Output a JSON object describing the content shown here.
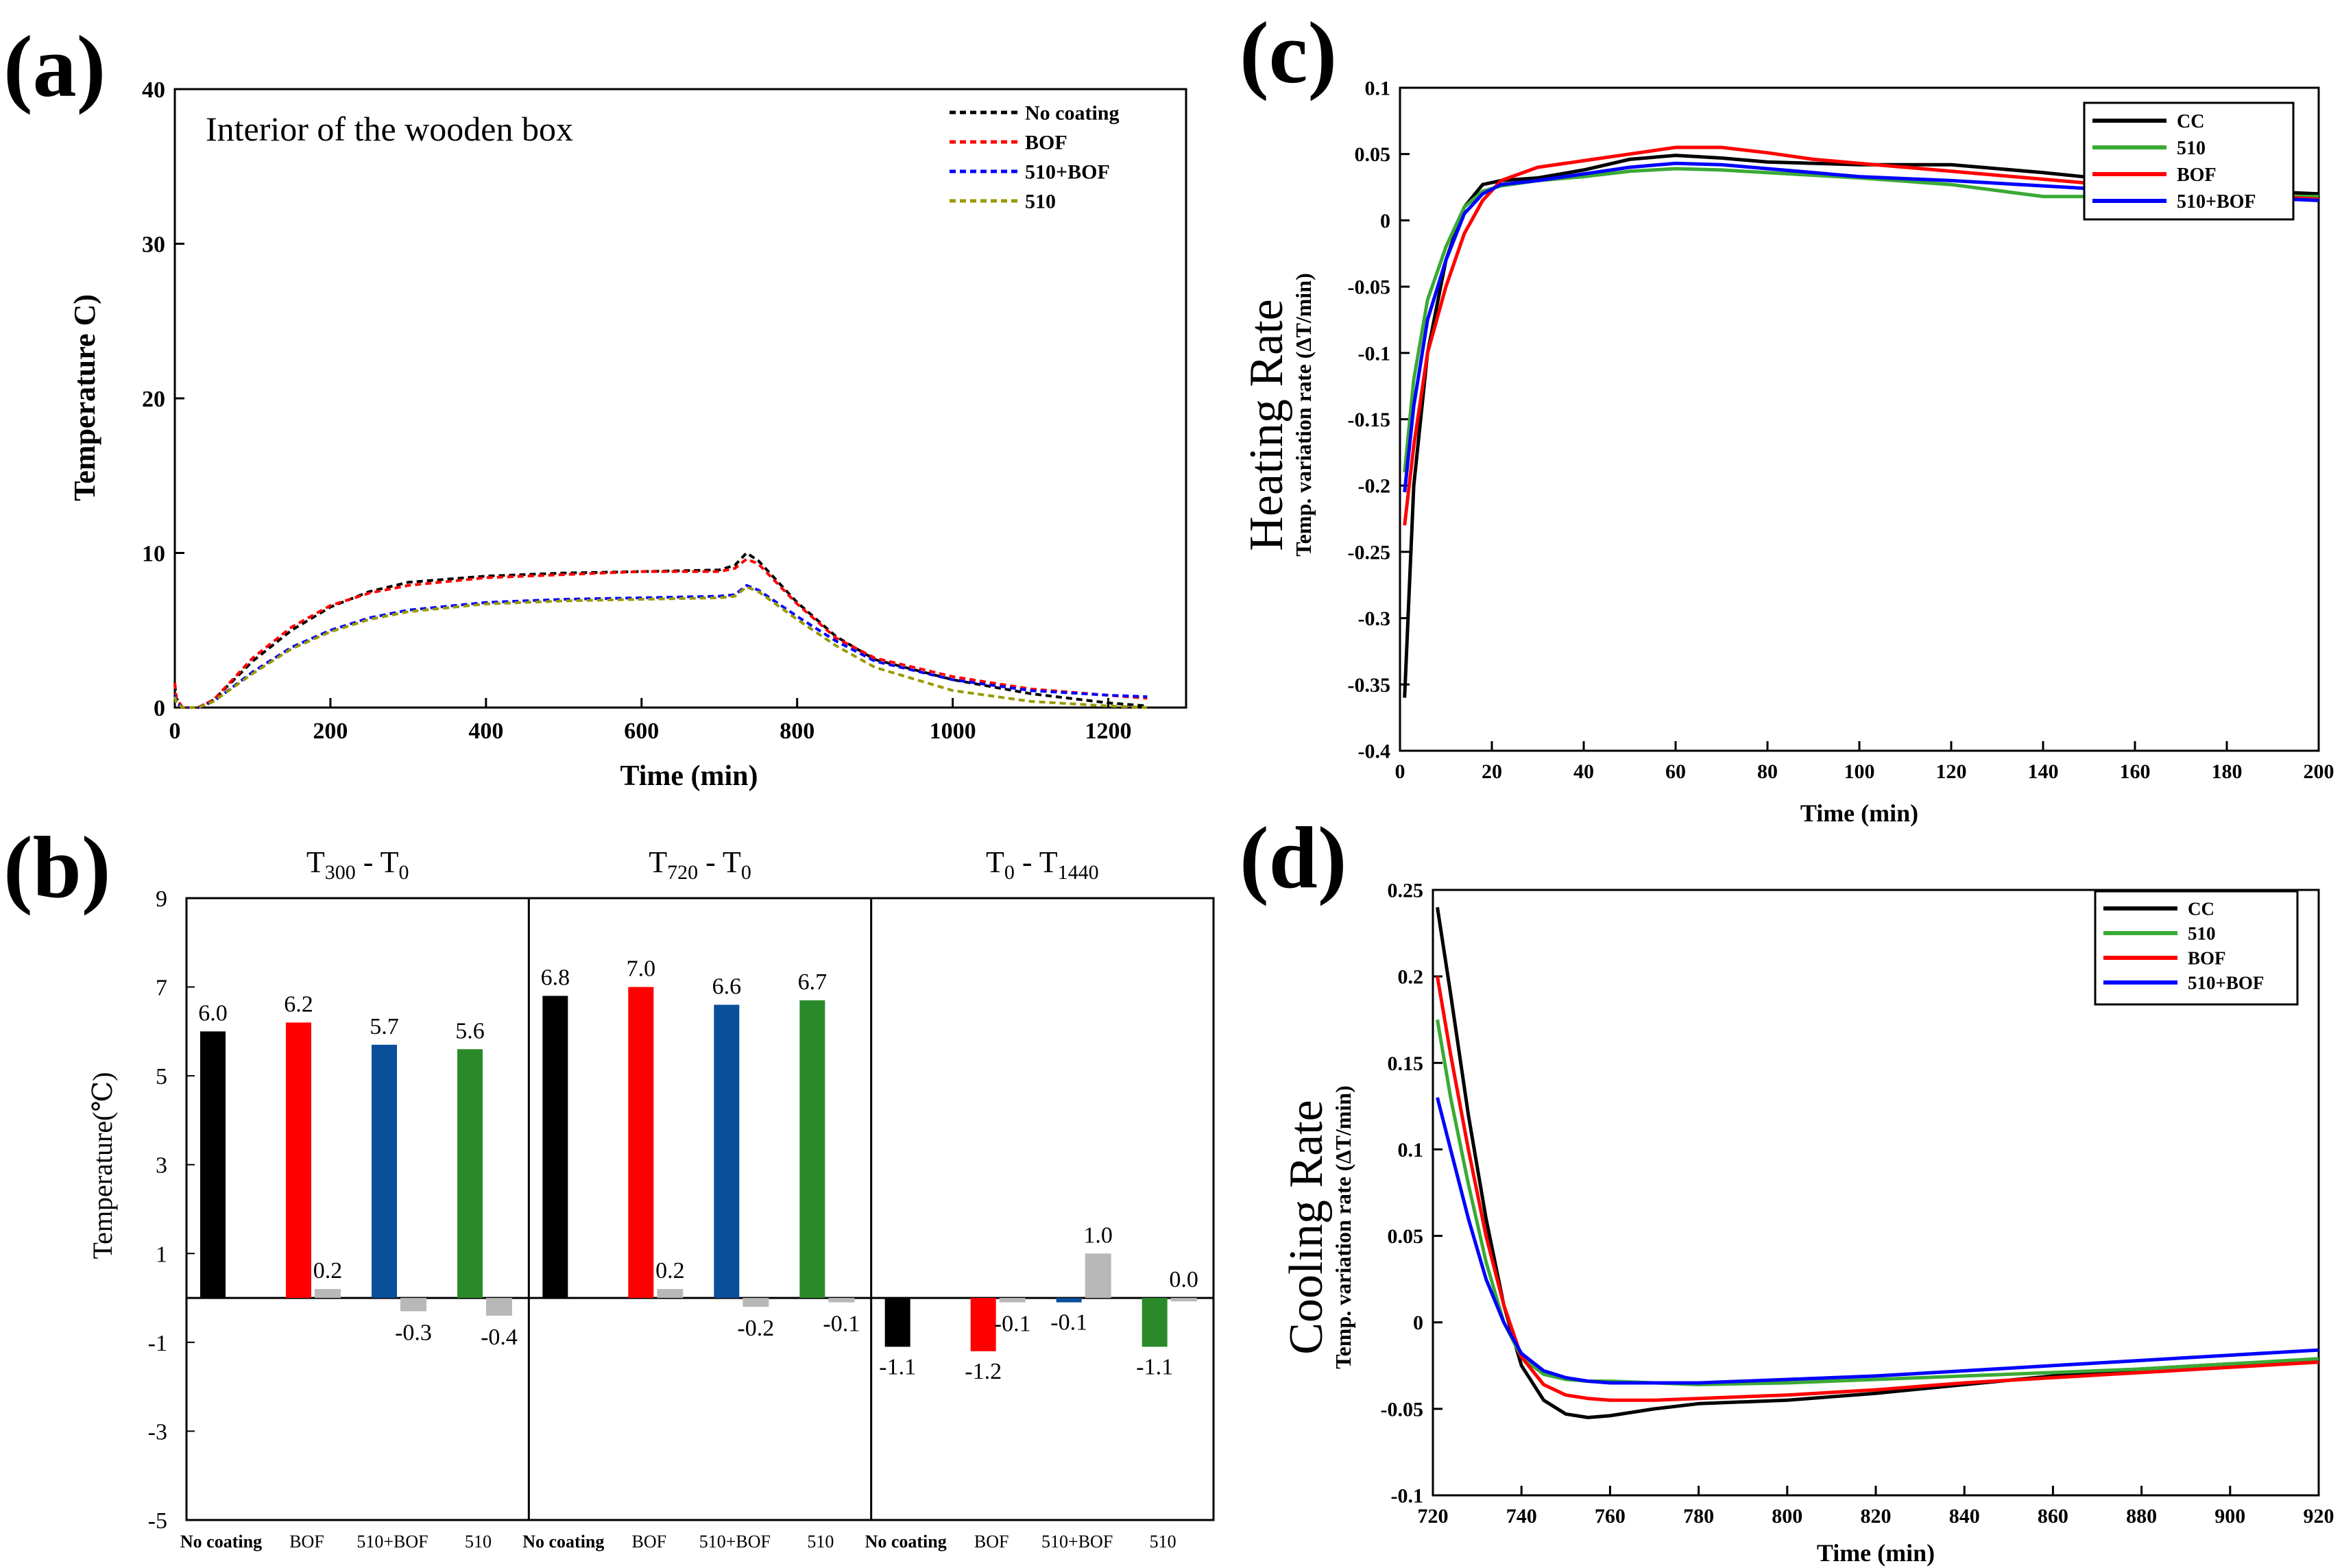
{
  "figure": {
    "panel_a_tag": "(a)",
    "panel_b_tag": "(b)",
    "panel_c_tag": "(c)",
    "panel_d_tag": "(d)"
  },
  "chart_data": [
    {
      "id": "a",
      "type": "line",
      "title": "Interior of the wooden box",
      "xlabel": "Time (min)",
      "ylabel": "Temperature   C)",
      "xlim": [
        0,
        1300
      ],
      "ylim": [
        0,
        40
      ],
      "xticks": [
        "0",
        "200",
        "400",
        "600",
        "800",
        "1000",
        "1200"
      ],
      "yticks": [
        "0",
        "10",
        "20",
        "30",
        "40"
      ],
      "legend_position": "top-right",
      "series": [
        {
          "name": "No coating",
          "color": "#000000",
          "dash": true,
          "x": [
            0,
            2,
            10,
            30,
            50,
            100,
            150,
            200,
            250,
            300,
            400,
            500,
            600,
            700,
            720,
            735,
            750,
            800,
            850,
            900,
            1000,
            1100,
            1200,
            1250
          ],
          "y": [
            1.5,
            0.6,
            0.0,
            0.0,
            0.5,
            3.0,
            5.0,
            6.5,
            7.5,
            8.1,
            8.5,
            8.7,
            8.8,
            8.9,
            9.2,
            10.0,
            9.5,
            6.8,
            4.6,
            3.1,
            1.8,
            0.9,
            0.3,
            0.1
          ]
        },
        {
          "name": "BOF",
          "color": "#ff0000",
          "dash": true,
          "x": [
            0,
            2,
            10,
            30,
            50,
            100,
            150,
            200,
            250,
            300,
            400,
            500,
            600,
            700,
            720,
            735,
            750,
            800,
            850,
            900,
            1000,
            1100,
            1200,
            1250
          ],
          "y": [
            1.6,
            0.6,
            0.0,
            0.0,
            0.5,
            3.2,
            5.2,
            6.6,
            7.4,
            7.9,
            8.4,
            8.6,
            8.8,
            8.8,
            9.0,
            9.6,
            9.3,
            6.7,
            4.5,
            3.2,
            2.0,
            1.2,
            0.8,
            0.6
          ]
        },
        {
          "name": "510+BOF",
          "color": "#0000ff",
          "dash": true,
          "x": [
            0,
            2,
            10,
            30,
            50,
            100,
            150,
            200,
            250,
            300,
            400,
            500,
            600,
            700,
            720,
            735,
            750,
            800,
            850,
            900,
            1000,
            1100,
            1200,
            1250
          ],
          "y": [
            0.8,
            0.3,
            0.0,
            0.0,
            0.4,
            2.3,
            3.9,
            5.0,
            5.8,
            6.3,
            6.8,
            7.0,
            7.1,
            7.2,
            7.3,
            7.9,
            7.6,
            5.9,
            4.3,
            3.0,
            1.8,
            1.1,
            0.8,
            0.7
          ]
        },
        {
          "name": "510",
          "color": "#999900",
          "dash": true,
          "x": [
            0,
            2,
            10,
            30,
            50,
            100,
            150,
            200,
            250,
            300,
            400,
            500,
            600,
            700,
            720,
            735,
            750,
            800,
            850,
            900,
            1000,
            1100,
            1200,
            1250
          ],
          "y": [
            0.7,
            0.3,
            0.0,
            0.0,
            0.4,
            2.2,
            3.8,
            4.9,
            5.7,
            6.2,
            6.7,
            6.9,
            7.0,
            7.1,
            7.2,
            7.8,
            7.5,
            5.7,
            4.0,
            2.6,
            1.1,
            0.4,
            0.1,
            0.0
          ]
        }
      ]
    },
    {
      "id": "b",
      "type": "bar",
      "ylabel": "Temperature(℃)",
      "ylim": [
        -5,
        9
      ],
      "yticks": [
        "-5",
        "-3",
        "-1",
        "1",
        "3",
        "5",
        "7",
        "9"
      ],
      "groups": [
        {
          "title_main": "T",
          "title_sub1": "300",
          "title_mid": " - T",
          "title_sub2": "0",
          "categories": [
            "No coating",
            "BOF",
            "510+BOF",
            "510"
          ],
          "values": [
            6.0,
            6.2,
            5.7,
            5.6
          ],
          "value_labels": [
            "6.0",
            "6.2",
            "5.7",
            "5.6"
          ],
          "diff_values": [
            null,
            0.2,
            -0.3,
            -0.4
          ],
          "diff_labels": [
            "",
            "0.2",
            "-0.3",
            "-0.4"
          ]
        },
        {
          "title_main": "T",
          "title_sub1": "720",
          "title_mid": " - T",
          "title_sub2": "0",
          "categories": [
            "No coating",
            "BOF",
            "510+BOF",
            "510"
          ],
          "values": [
            6.8,
            7.0,
            6.6,
            6.7
          ],
          "value_labels": [
            "6.8",
            "7.0",
            "6.6",
            "6.7"
          ],
          "diff_values": [
            null,
            0.2,
            -0.2,
            -0.1
          ],
          "diff_labels": [
            "",
            "0.2",
            "-0.2",
            "-0.1"
          ]
        },
        {
          "title_main": "T",
          "title_sub1": "0",
          "title_mid": " - T",
          "title_sub2": "1440",
          "categories": [
            "No coating",
            "BOF",
            "510+BOF",
            "510"
          ],
          "values": [
            -1.1,
            -1.2,
            -0.1,
            -1.1
          ],
          "value_labels": [
            "-1.1",
            "-1.2",
            "-0.1",
            "-1.1"
          ],
          "diff_values": [
            null,
            -0.1,
            1.0,
            0.0
          ],
          "diff_labels": [
            "",
            "-0.1",
            "1.0",
            "0.0"
          ]
        }
      ],
      "colors": [
        "#000000",
        "#ff0000",
        "#0a4f9a",
        "#2a8a2a"
      ],
      "diff_color": "#b8b8b8"
    },
    {
      "id": "c",
      "type": "line",
      "ylabel_main": "Heating Rate",
      "ylabel_sub": "Temp. variation rate (ΔT/min)",
      "xlabel": "Time (min)",
      "xlim": [
        0,
        200
      ],
      "ylim": [
        -0.4,
        0.1
      ],
      "xticks": [
        "0",
        "20",
        "40",
        "60",
        "80",
        "100",
        "120",
        "140",
        "160",
        "180",
        "200"
      ],
      "yticks": [
        "-0.4",
        "-0.35",
        "-0.3",
        "-0.25",
        "-0.2",
        "-0.15",
        "-0.1",
        "-0.05",
        "0",
        "0.05",
        "0.1"
      ],
      "legend_position": "top-right",
      "series": [
        {
          "name": "CC",
          "color": "#000000",
          "x": [
            1,
            3,
            6,
            10,
            14,
            18,
            22,
            30,
            40,
            50,
            60,
            70,
            80,
            90,
            100,
            120,
            140,
            160,
            180,
            200
          ],
          "y": [
            -0.36,
            -0.2,
            -0.1,
            -0.03,
            0.01,
            0.027,
            0.03,
            0.032,
            0.038,
            0.046,
            0.049,
            0.047,
            0.044,
            0.043,
            0.042,
            0.042,
            0.036,
            0.029,
            0.023,
            0.02
          ]
        },
        {
          "name": "510",
          "color": "#3aaa35",
          "x": [
            1,
            3,
            6,
            10,
            14,
            18,
            22,
            30,
            40,
            50,
            60,
            70,
            80,
            90,
            100,
            120,
            140,
            160,
            180,
            200
          ],
          "y": [
            -0.19,
            -0.12,
            -0.06,
            -0.02,
            0.01,
            0.022,
            0.026,
            0.03,
            0.033,
            0.037,
            0.039,
            0.038,
            0.036,
            0.034,
            0.032,
            0.027,
            0.018,
            0.018,
            0.018,
            0.018
          ]
        },
        {
          "name": "BOF",
          "color": "#ff0000",
          "x": [
            1,
            3,
            6,
            10,
            14,
            18,
            22,
            30,
            40,
            50,
            60,
            70,
            80,
            90,
            100,
            120,
            140,
            160,
            180,
            200
          ],
          "y": [
            -0.23,
            -0.17,
            -0.1,
            -0.05,
            -0.01,
            0.015,
            0.03,
            0.04,
            0.045,
            0.05,
            0.055,
            0.055,
            0.051,
            0.046,
            0.043,
            0.037,
            0.031,
            0.025,
            0.02,
            0.016
          ]
        },
        {
          "name": "510+BOF",
          "color": "#0000ff",
          "x": [
            1,
            3,
            6,
            10,
            14,
            18,
            22,
            30,
            40,
            50,
            60,
            70,
            80,
            90,
            100,
            120,
            140,
            160,
            180,
            200
          ],
          "y": [
            -0.205,
            -0.14,
            -0.075,
            -0.03,
            0.005,
            0.02,
            0.027,
            0.03,
            0.035,
            0.04,
            0.043,
            0.042,
            0.039,
            0.036,
            0.033,
            0.03,
            0.026,
            0.022,
            0.018,
            0.015
          ]
        }
      ]
    },
    {
      "id": "d",
      "type": "line",
      "ylabel_main": "Cooling Rate",
      "ylabel_sub": "Temp. variation rate (ΔT/min)",
      "xlabel": "Time (min)",
      "xlim": [
        720,
        920
      ],
      "ylim": [
        -0.1,
        0.25
      ],
      "xticks": [
        "720",
        "740",
        "760",
        "780",
        "800",
        "820",
        "840",
        "860",
        "880",
        "900",
        "920"
      ],
      "yticks": [
        "-0.1",
        "-0.05",
        "0",
        "0.05",
        "0.1",
        "0.15",
        "0.2",
        "0.25"
      ],
      "legend_position": "top-right",
      "series": [
        {
          "name": "CC",
          "color": "#000000",
          "x": [
            721,
            724,
            728,
            732,
            736,
            740,
            745,
            750,
            755,
            760,
            770,
            780,
            800,
            820,
            840,
            860,
            880,
            900,
            920
          ],
          "y": [
            0.24,
            0.19,
            0.12,
            0.06,
            0.01,
            -0.025,
            -0.045,
            -0.053,
            -0.055,
            -0.054,
            -0.05,
            -0.047,
            -0.045,
            -0.041,
            -0.036,
            -0.031,
            -0.027,
            -0.024,
            -0.022
          ]
        },
        {
          "name": "510",
          "color": "#3aaa35",
          "x": [
            721,
            724,
            728,
            732,
            736,
            740,
            745,
            750,
            755,
            760,
            770,
            780,
            800,
            820,
            840,
            860,
            880,
            900,
            920
          ],
          "y": [
            0.175,
            0.13,
            0.08,
            0.035,
            0.0,
            -0.02,
            -0.03,
            -0.033,
            -0.034,
            -0.034,
            -0.035,
            -0.036,
            -0.035,
            -0.033,
            -0.031,
            -0.029,
            -0.027,
            -0.024,
            -0.021
          ]
        },
        {
          "name": "BOF",
          "color": "#ff0000",
          "x": [
            721,
            724,
            728,
            732,
            736,
            740,
            745,
            750,
            755,
            760,
            770,
            780,
            800,
            820,
            840,
            860,
            880,
            900,
            920
          ],
          "y": [
            0.2,
            0.155,
            0.1,
            0.05,
            0.01,
            -0.02,
            -0.036,
            -0.042,
            -0.044,
            -0.045,
            -0.045,
            -0.044,
            -0.042,
            -0.039,
            -0.035,
            -0.032,
            -0.029,
            -0.026,
            -0.023
          ]
        },
        {
          "name": "510+BOF",
          "color": "#0000ff",
          "x": [
            721,
            724,
            728,
            732,
            736,
            740,
            745,
            750,
            755,
            760,
            770,
            780,
            800,
            820,
            840,
            860,
            880,
            900,
            920
          ],
          "y": [
            0.13,
            0.1,
            0.06,
            0.025,
            0.0,
            -0.018,
            -0.028,
            -0.032,
            -0.034,
            -0.035,
            -0.035,
            -0.035,
            -0.033,
            -0.031,
            -0.028,
            -0.025,
            -0.022,
            -0.019,
            -0.016
          ]
        }
      ]
    }
  ]
}
